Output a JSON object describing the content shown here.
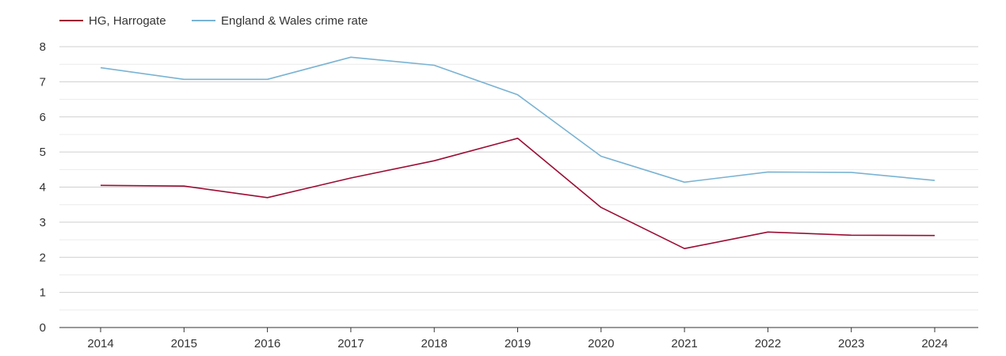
{
  "chart_data": {
    "type": "line",
    "title": "",
    "xlabel": "",
    "ylabel": "",
    "x": [
      "2014",
      "2015",
      "2016",
      "2017",
      "2018",
      "2019",
      "2020",
      "2021",
      "2022",
      "2023",
      "2024"
    ],
    "ylim": [
      0,
      8
    ],
    "yticks": [
      "0",
      "1",
      "2",
      "3",
      "4",
      "5",
      "6",
      "7",
      "8"
    ],
    "grid": true,
    "legend_position": "top-left",
    "series": [
      {
        "name": "HG, Harrogate",
        "color": "#9b0d34",
        "values": [
          4.05,
          4.03,
          3.7,
          4.26,
          4.75,
          5.39,
          3.42,
          2.25,
          2.72,
          2.63,
          2.62
        ]
      },
      {
        "name": "England & Wales crime rate",
        "color": "#7ab3d3",
        "values": [
          7.4,
          7.07,
          7.07,
          7.7,
          7.47,
          6.63,
          4.88,
          4.14,
          4.43,
          4.42,
          4.19
        ]
      }
    ]
  }
}
